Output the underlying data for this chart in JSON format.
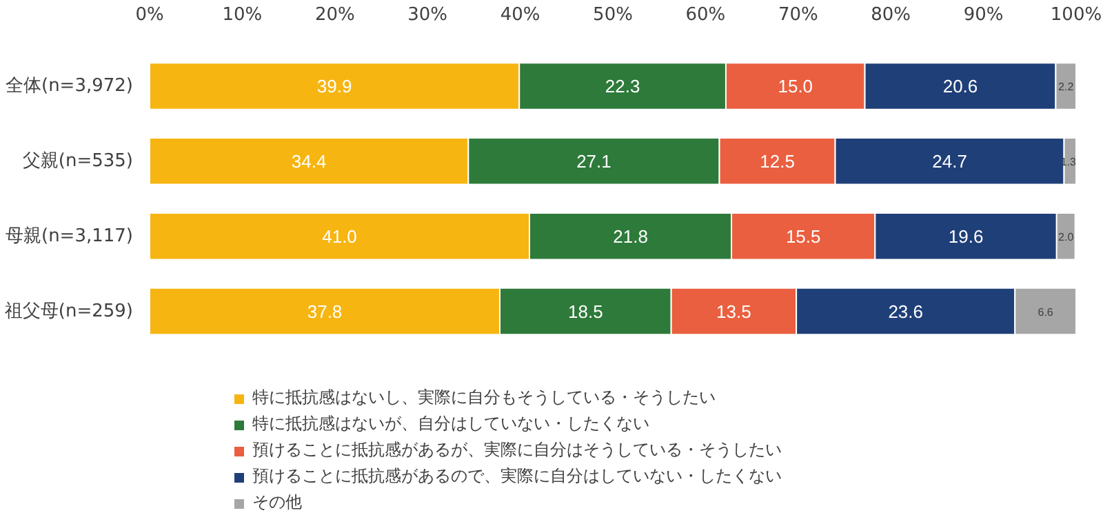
{
  "chart_data": {
    "type": "bar",
    "orientation": "horizontal",
    "stacked": true,
    "categories": [
      "全体(n=3,972)",
      "父親(n=535)",
      "母親(n=3,117)",
      "祖父母(n=259)"
    ],
    "series": [
      {
        "name": "特に抵抗感はないし、実際に自分もそうしている・そうしたい",
        "color": "#f7b511",
        "values": [
          39.9,
          34.4,
          41.0,
          37.8
        ],
        "value_labels": [
          "39.9",
          "34.4",
          "41.0",
          "37.8"
        ]
      },
      {
        "name": "特に抵抗感はないが、自分はしていない・したくない",
        "color": "#2e7a3a",
        "values": [
          22.3,
          27.1,
          21.8,
          18.5
        ]
      },
      {
        "name": "預けることに抵抗感があるが、実際に自分はそうしている・そうしたい",
        "color": "#ea5f3f",
        "values": [
          15.0,
          12.5,
          15.5,
          13.5
        ],
        "value_labels": [
          "15.0",
          "12.5",
          "15.5",
          "13.5"
        ]
      },
      {
        "name": "預けることに抵抗感があるので、実際に自分はしていない・したくない",
        "color": "#1f3f78",
        "values": [
          20.6,
          24.7,
          19.6,
          23.6
        ]
      },
      {
        "name": "その他",
        "color": "#a6a6a6",
        "values": [
          2.2,
          1.3,
          2.0,
          6.6
        ],
        "value_labels": [
          "2.2",
          "1.3",
          "2.0",
          "6.6"
        ]
      }
    ],
    "xlim": [
      0,
      100
    ],
    "xticks": [
      {
        "value": 0,
        "label": "0%"
      },
      {
        "value": 10,
        "label": "10%"
      },
      {
        "value": 20,
        "label": "20%"
      },
      {
        "value": 30,
        "label": "30%"
      },
      {
        "value": 40,
        "label": "40%"
      },
      {
        "value": 50,
        "label": "50%"
      },
      {
        "value": 60,
        "label": "60%"
      },
      {
        "value": 70,
        "label": "70%"
      },
      {
        "value": 80,
        "label": "80%"
      },
      {
        "value": 90,
        "label": "90%"
      },
      {
        "value": 100,
        "label": "100%"
      }
    ],
    "data_labels": true,
    "grid": false,
    "legend": "bottom"
  }
}
